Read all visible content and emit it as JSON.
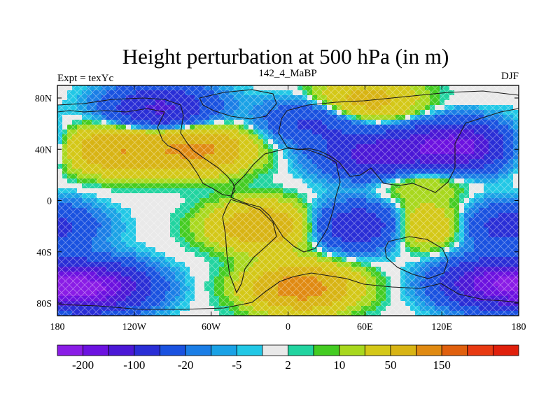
{
  "title": "Height perturbation at 500 hPa (in m)",
  "left_string": "Expt = texYc",
  "center_string": "142_4_MaBP",
  "right_string": "DJF",
  "x_ticks": [
    "180",
    "120W",
    "60W",
    "0",
    "60E",
    "120E",
    "180"
  ],
  "y_ticks": [
    "80N",
    "40N",
    "0",
    "40S",
    "80S"
  ],
  "colorbar": {
    "colors": [
      "#8a1de6",
      "#6c12e0",
      "#4b18d6",
      "#2a2ed6",
      "#1a52e0",
      "#1b7ee6",
      "#1aa2e6",
      "#22c8e6",
      "#e9e9e9",
      "#22d4a0",
      "#44cc22",
      "#a8d81e",
      "#d4c818",
      "#d8b414",
      "#e08a12",
      "#e0600e",
      "#e83a12",
      "#e0200c"
    ],
    "labels": [
      "-200",
      "-100",
      "-20",
      "-5",
      "2",
      "10",
      "50",
      "150"
    ]
  },
  "map_data": {
    "lat_range": [
      -90,
      90
    ],
    "lon_range": [
      -180,
      180
    ],
    "field_features": [
      {
        "kind": "high",
        "lon": -135,
        "lat": 40,
        "strength": 95
      },
      {
        "kind": "high",
        "lon": -70,
        "lat": 40,
        "strength": 110
      },
      {
        "kind": "low",
        "lon": -100,
        "lat": 72,
        "strength": 110
      },
      {
        "kind": "low",
        "lon": 20,
        "lat": 62,
        "strength": 60
      },
      {
        "kind": "low",
        "lon": 70,
        "lat": 35,
        "strength": 130
      },
      {
        "kind": "low",
        "lon": 130,
        "lat": 42,
        "strength": 180
      },
      {
        "kind": "high",
        "lon": 60,
        "lat": 78,
        "strength": 70
      },
      {
        "kind": "high",
        "lon": 100,
        "lat": 20,
        "strength": 40
      },
      {
        "kind": "high",
        "lon": -20,
        "lat": -20,
        "strength": 90
      },
      {
        "kind": "high",
        "lon": 100,
        "lat": -20,
        "strength": 70
      },
      {
        "kind": "low",
        "lon": 60,
        "lat": -20,
        "strength": 110
      },
      {
        "kind": "low",
        "lon": 170,
        "lat": -20,
        "strength": 70
      },
      {
        "kind": "low",
        "lon": -150,
        "lat": -68,
        "strength": 190
      },
      {
        "kind": "low",
        "lon": 160,
        "lat": -65,
        "strength": 170
      },
      {
        "kind": "high",
        "lon": 10,
        "lat": -68,
        "strength": 130
      }
    ]
  }
}
